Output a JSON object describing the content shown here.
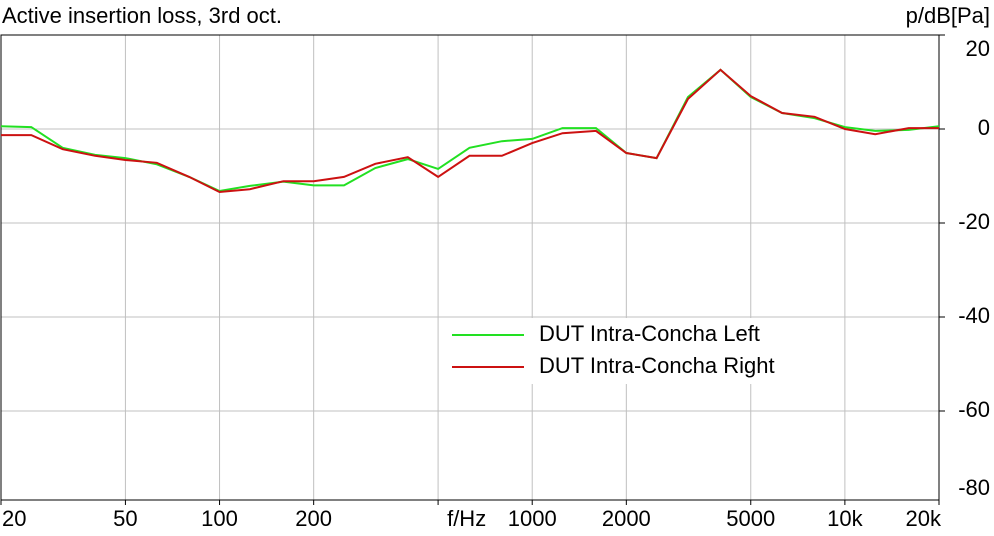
{
  "chart_data": {
    "type": "line",
    "title": "Active insertion loss, 3rd oct.",
    "y_label": "p/dB[Pa]",
    "x": [
      20,
      25,
      31.5,
      40,
      50,
      63,
      80,
      100,
      125,
      160,
      200,
      250,
      315,
      400,
      500,
      630,
      800,
      1000,
      1250,
      1600,
      2000,
      2500,
      3150,
      4000,
      5000,
      6300,
      8000,
      10000,
      12500,
      16000,
      20000
    ],
    "series": [
      {
        "name": "DUT Intra-Concha Left",
        "color": "#22e022",
        "values": [
          0.6,
          0.4,
          -4,
          -5.5,
          -6.2,
          -7.5,
          -10.2,
          -13.2,
          -12.1,
          -11.2,
          -12,
          -12,
          -8.3,
          -6.4,
          -8.5,
          -4,
          -2.6,
          -2.1,
          0.2,
          0.2,
          -5.1,
          -6.2,
          6.8,
          12.6,
          6.8,
          3.4,
          2.3,
          0.4,
          -0.4,
          -0.2,
          0.6
        ]
      },
      {
        "name": "DUT Intra-Concha Right",
        "color": "#cc1111",
        "values": [
          -1.3,
          -1.3,
          -4.3,
          -5.7,
          -6.6,
          -7.2,
          -10.2,
          -13.4,
          -12.8,
          -11.1,
          -11.1,
          -10.2,
          -7.4,
          -6,
          -10.2,
          -5.7,
          -5.7,
          -3,
          -0.9,
          -0.4,
          -5.1,
          -6.2,
          6.4,
          12.6,
          7,
          3.4,
          2.6,
          0,
          -1.1,
          0.2,
          0.2
        ]
      }
    ],
    "xlog": true,
    "xlim": [
      20,
      20000
    ],
    "xticks": [
      20,
      50,
      100,
      200,
      {
        "value": 500,
        "label": "f/Hz"
      },
      1000,
      2000,
      5000,
      {
        "value": 10000,
        "label": "10k"
      },
      {
        "value": 20000,
        "label": "20k"
      }
    ],
    "ylim": [
      -80,
      20
    ],
    "yticks": [
      20,
      0,
      -20,
      -40,
      -60,
      -80
    ],
    "grid": true
  }
}
